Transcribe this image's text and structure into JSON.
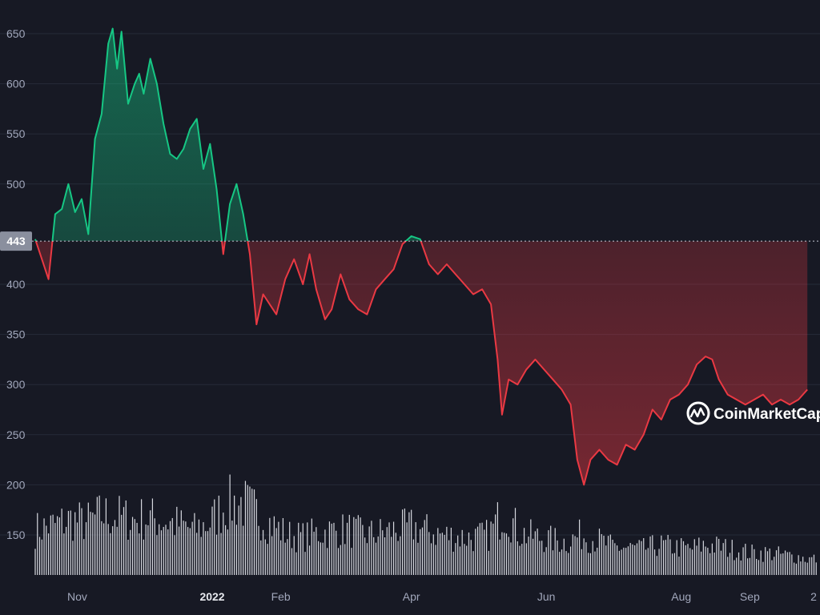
{
  "chart_data": {
    "type": "area",
    "y_ticks": [
      650,
      600,
      550,
      500,
      400,
      350,
      300,
      250,
      200,
      150
    ],
    "x_ticks": [
      "Nov",
      "2022",
      "Feb",
      "Apr",
      "Jun",
      "Aug",
      "Sep",
      "2"
    ],
    "ylim": [
      100,
      680
    ],
    "reference_value": 443,
    "reference_label": "443",
    "grid": true,
    "legend": "none",
    "colors": {
      "above": "#16c784",
      "below": "#ea3943",
      "background": "#171924",
      "volume": "#d6d8df",
      "grid": "#262a38",
      "tick": "#a1a7bb"
    },
    "watermark": {
      "text": "CoinMarketCap",
      "icon": "coinmarketcap-logo-icon"
    },
    "price_series": [
      [
        "2021-10-13",
        445
      ],
      [
        "2021-10-16",
        425
      ],
      [
        "2021-10-19",
        405
      ],
      [
        "2021-10-22",
        470
      ],
      [
        "2021-10-25",
        475
      ],
      [
        "2021-10-28",
        500
      ],
      [
        "2021-10-31",
        472
      ],
      [
        "2021-11-03",
        485
      ],
      [
        "2021-11-06",
        450
      ],
      [
        "2021-11-09",
        545
      ],
      [
        "2021-11-12",
        570
      ],
      [
        "2021-11-15",
        640
      ],
      [
        "2021-11-17",
        655
      ],
      [
        "2021-11-19",
        615
      ],
      [
        "2021-11-21",
        652
      ],
      [
        "2021-11-24",
        580
      ],
      [
        "2021-11-27",
        600
      ],
      [
        "2021-11-29",
        610
      ],
      [
        "2021-12-01",
        590
      ],
      [
        "2021-12-04",
        625
      ],
      [
        "2021-12-07",
        600
      ],
      [
        "2021-12-10",
        560
      ],
      [
        "2021-12-13",
        530
      ],
      [
        "2021-12-16",
        525
      ],
      [
        "2021-12-19",
        535
      ],
      [
        "2021-12-22",
        555
      ],
      [
        "2021-12-25",
        565
      ],
      [
        "2021-12-28",
        515
      ],
      [
        "2021-12-31",
        540
      ],
      [
        "2022-01-03",
        495
      ],
      [
        "2022-01-06",
        430
      ],
      [
        "2022-01-09",
        480
      ],
      [
        "2022-01-12",
        500
      ],
      [
        "2022-01-15",
        470
      ],
      [
        "2022-01-18",
        430
      ],
      [
        "2022-01-21",
        360
      ],
      [
        "2022-01-24",
        390
      ],
      [
        "2022-01-27",
        380
      ],
      [
        "2022-01-30",
        370
      ],
      [
        "2022-02-03",
        405
      ],
      [
        "2022-02-07",
        425
      ],
      [
        "2022-02-11",
        400
      ],
      [
        "2022-02-14",
        430
      ],
      [
        "2022-02-17",
        395
      ],
      [
        "2022-02-21",
        365
      ],
      [
        "2022-02-24",
        375
      ],
      [
        "2022-02-28",
        410
      ],
      [
        "2022-03-04",
        385
      ],
      [
        "2022-03-08",
        375
      ],
      [
        "2022-03-12",
        370
      ],
      [
        "2022-03-16",
        395
      ],
      [
        "2022-03-20",
        405
      ],
      [
        "2022-03-24",
        415
      ],
      [
        "2022-03-28",
        440
      ],
      [
        "2022-04-01",
        448
      ],
      [
        "2022-04-05",
        445
      ],
      [
        "2022-04-09",
        420
      ],
      [
        "2022-04-13",
        410
      ],
      [
        "2022-04-17",
        420
      ],
      [
        "2022-04-21",
        410
      ],
      [
        "2022-04-25",
        400
      ],
      [
        "2022-04-29",
        390
      ],
      [
        "2022-05-03",
        395
      ],
      [
        "2022-05-07",
        380
      ],
      [
        "2022-05-10",
        325
      ],
      [
        "2022-05-12",
        270
      ],
      [
        "2022-05-15",
        305
      ],
      [
        "2022-05-19",
        300
      ],
      [
        "2022-05-23",
        315
      ],
      [
        "2022-05-27",
        325
      ],
      [
        "2022-05-31",
        315
      ],
      [
        "2022-06-04",
        305
      ],
      [
        "2022-06-08",
        295
      ],
      [
        "2022-06-12",
        280
      ],
      [
        "2022-06-15",
        225
      ],
      [
        "2022-06-18",
        200
      ],
      [
        "2022-06-21",
        225
      ],
      [
        "2022-06-25",
        235
      ],
      [
        "2022-06-29",
        225
      ],
      [
        "2022-07-03",
        220
      ],
      [
        "2022-07-07",
        240
      ],
      [
        "2022-07-11",
        235
      ],
      [
        "2022-07-15",
        250
      ],
      [
        "2022-07-19",
        275
      ],
      [
        "2022-07-23",
        265
      ],
      [
        "2022-07-27",
        285
      ],
      [
        "2022-07-31",
        290
      ],
      [
        "2022-08-04",
        300
      ],
      [
        "2022-08-08",
        320
      ],
      [
        "2022-08-12",
        328
      ],
      [
        "2022-08-15",
        325
      ],
      [
        "2022-08-18",
        305
      ],
      [
        "2022-08-22",
        290
      ],
      [
        "2022-08-26",
        285
      ],
      [
        "2022-08-30",
        280
      ],
      [
        "2022-09-03",
        285
      ],
      [
        "2022-09-07",
        290
      ],
      [
        "2022-09-11",
        280
      ],
      [
        "2022-09-15",
        285
      ],
      [
        "2022-09-19",
        280
      ],
      [
        "2022-09-23",
        285
      ],
      [
        "2022-09-27",
        295
      ]
    ],
    "volume_series": [
      [
        "2021-10-13",
        45
      ],
      [
        "2021-10-22",
        50
      ],
      [
        "2021-10-29",
        55
      ],
      [
        "2021-11-05",
        52
      ],
      [
        "2021-11-12",
        60
      ],
      [
        "2021-11-19",
        58
      ],
      [
        "2021-11-26",
        55
      ],
      [
        "2021-12-03",
        57
      ],
      [
        "2021-12-10",
        54
      ],
      [
        "2021-12-17",
        50
      ],
      [
        "2021-12-24",
        45
      ],
      [
        "2021-12-31",
        52
      ],
      [
        "2022-01-07",
        70
      ],
      [
        "2022-01-14",
        72
      ],
      [
        "2022-01-21",
        62
      ],
      [
        "2022-01-28",
        50
      ],
      [
        "2022-02-04",
        40
      ],
      [
        "2022-02-11",
        38
      ],
      [
        "2022-02-18",
        42
      ],
      [
        "2022-02-25",
        44
      ],
      [
        "2022-03-04",
        45
      ],
      [
        "2022-03-11",
        40
      ],
      [
        "2022-03-18",
        42
      ],
      [
        "2022-03-25",
        45
      ],
      [
        "2022-04-01",
        48
      ],
      [
        "2022-04-08",
        44
      ],
      [
        "2022-04-15",
        40
      ],
      [
        "2022-04-22",
        38
      ],
      [
        "2022-04-29",
        37
      ],
      [
        "2022-05-06",
        40
      ],
      [
        "2022-05-13",
        65
      ],
      [
        "2022-05-20",
        42
      ],
      [
        "2022-05-27",
        38
      ],
      [
        "2022-06-03",
        35
      ],
      [
        "2022-06-10",
        33
      ],
      [
        "2022-06-17",
        40
      ],
      [
        "2022-06-24",
        35
      ],
      [
        "2022-07-01",
        28
      ],
      [
        "2022-07-08",
        27
      ],
      [
        "2022-07-15",
        26
      ],
      [
        "2022-07-22",
        30
      ],
      [
        "2022-07-29",
        28
      ],
      [
        "2022-08-05",
        26
      ],
      [
        "2022-08-12",
        30
      ],
      [
        "2022-08-19",
        28
      ],
      [
        "2022-08-26",
        25
      ],
      [
        "2022-09-02",
        22
      ],
      [
        "2022-09-09",
        22
      ],
      [
        "2022-09-16",
        20
      ],
      [
        "2022-09-23",
        18
      ],
      [
        "2022-09-27",
        16
      ]
    ]
  }
}
